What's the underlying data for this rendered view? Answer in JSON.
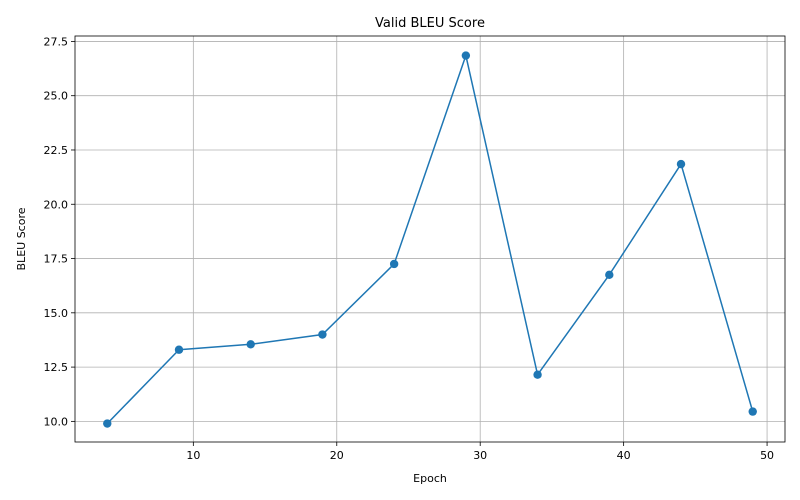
{
  "chart_data": {
    "type": "line",
    "title": "Valid BLEU Score",
    "xlabel": "Epoch",
    "ylabel": "BLEU Score",
    "xlim": [
      1.75,
      51.25
    ],
    "ylim": [
      9.05,
      27.75
    ],
    "xticks": [
      10,
      20,
      30,
      40,
      50
    ],
    "yticks": [
      10.0,
      12.5,
      15.0,
      17.5,
      20.0,
      22.5,
      25.0,
      27.5
    ],
    "grid": true,
    "series": [
      {
        "color": "#1f77b4",
        "marker": "circle",
        "x": [
          4,
          9,
          14,
          19,
          24,
          29,
          34,
          39,
          44,
          49
        ],
        "y": [
          9.9,
          13.3,
          13.55,
          14.0,
          17.25,
          26.85,
          12.15,
          16.75,
          21.85,
          10.45
        ]
      }
    ]
  }
}
